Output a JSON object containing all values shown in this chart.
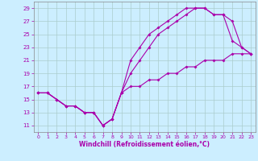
{
  "xlabel": "Windchill (Refroidissement éolien,°C)",
  "bg_color": "#cceeff",
  "grid_color": "#aacccc",
  "line_color": "#aa00aa",
  "spine_color": "#888888",
  "xlim": [
    -0.5,
    23.5
  ],
  "ylim": [
    10,
    30
  ],
  "xticks": [
    0,
    1,
    2,
    3,
    4,
    5,
    6,
    7,
    8,
    9,
    10,
    11,
    12,
    13,
    14,
    15,
    16,
    17,
    18,
    19,
    20,
    21,
    22,
    23
  ],
  "yticks": [
    11,
    13,
    15,
    17,
    19,
    21,
    23,
    25,
    27,
    29
  ],
  "line1_x": [
    0,
    1,
    2,
    3,
    4,
    5,
    6,
    7,
    8,
    9,
    10,
    11,
    12,
    13,
    14,
    15,
    16,
    17,
    18,
    19,
    20,
    21,
    22,
    23
  ],
  "line1_y": [
    16,
    16,
    15,
    14,
    14,
    13,
    13,
    11,
    12,
    16,
    21,
    23,
    25,
    26,
    27,
    28,
    29,
    29,
    29,
    28,
    28,
    24,
    23,
    22
  ],
  "line2_x": [
    0,
    1,
    2,
    3,
    4,
    5,
    6,
    7,
    8,
    9,
    10,
    11,
    12,
    13,
    14,
    15,
    16,
    17,
    18,
    19,
    20,
    21,
    22,
    23
  ],
  "line2_y": [
    16,
    16,
    15,
    14,
    14,
    13,
    13,
    11,
    12,
    16,
    19,
    21,
    23,
    25,
    26,
    27,
    28,
    29,
    29,
    28,
    28,
    27,
    23,
    22
  ],
  "line3_x": [
    0,
    1,
    2,
    3,
    4,
    5,
    6,
    7,
    8,
    9,
    10,
    11,
    12,
    13,
    14,
    15,
    16,
    17,
    18,
    19,
    20,
    21,
    22,
    23
  ],
  "line3_y": [
    16,
    16,
    15,
    14,
    14,
    13,
    13,
    11,
    12,
    16,
    17,
    17,
    18,
    18,
    19,
    19,
    20,
    20,
    21,
    21,
    21,
    22,
    22,
    22
  ],
  "marker": "D",
  "markersize": 2.0,
  "linewidth": 0.8
}
